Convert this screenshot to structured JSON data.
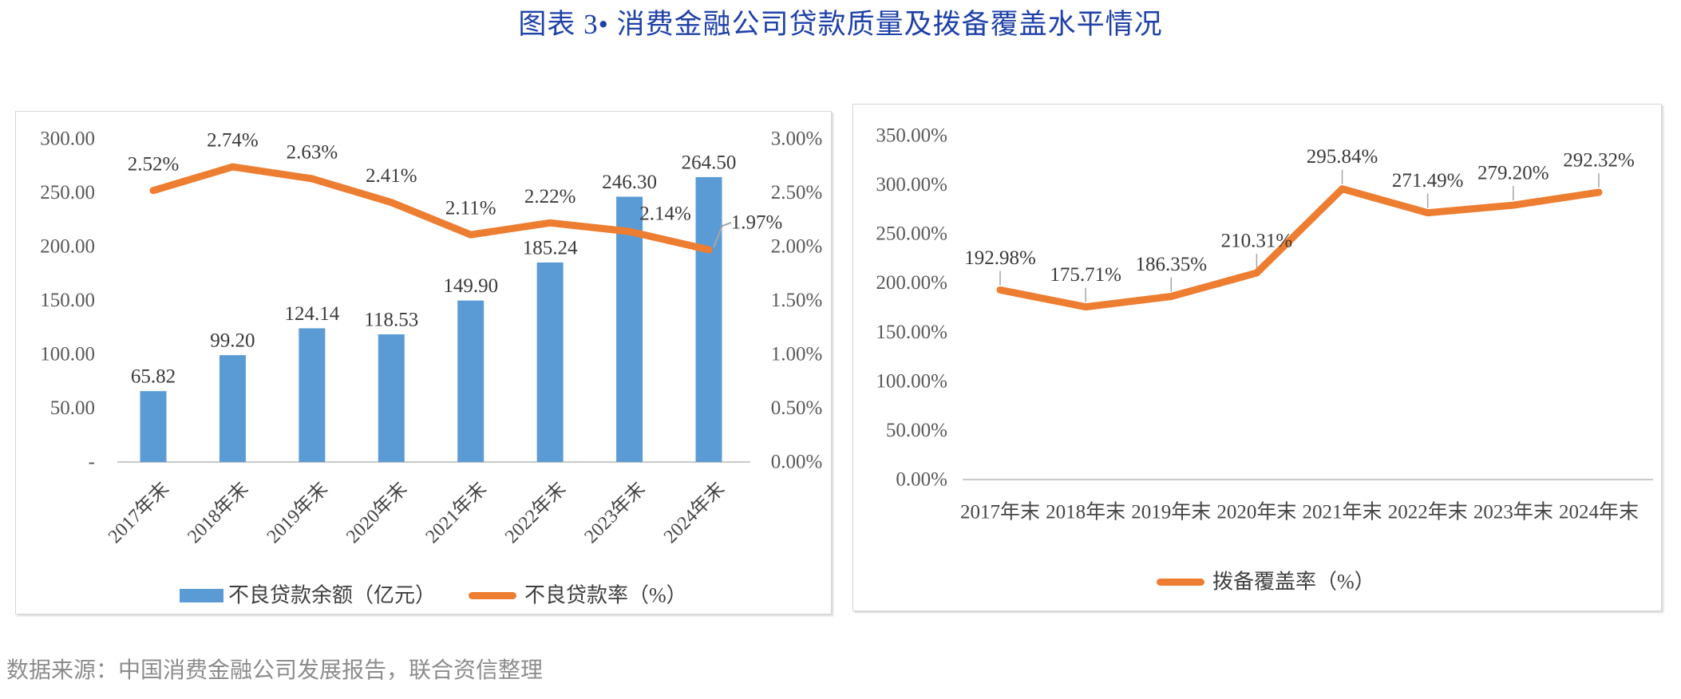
{
  "title": "图表 3• 消费金融公司贷款质量及拨备覆盖水平情况",
  "source_note": "数据来源：中国消费金融公司发展报告，联合资信整理",
  "colors": {
    "title_blue": "#1F41A8",
    "bar_blue": "#5B9BD5",
    "line_orange": "#ED7D31",
    "axis_gray": "#C9C9C9",
    "leader_gray": "#A6A6A6",
    "tick_gray": "#595959",
    "category_gray": "#454545",
    "data_label_dark": "#3A3A3A",
    "legend_text": "#3F3F3F",
    "source_gray": "#8C8C8C"
  },
  "chart_data": [
    {
      "type": "bar",
      "title": "不良贷款余额及不良贷款率",
      "categories": [
        "2017年末",
        "2018年末",
        "2019年末",
        "2020年末",
        "2021年末",
        "2022年末",
        "2023年末",
        "2024年末"
      ],
      "series": [
        {
          "name": "不良贷款余额（亿元）",
          "kind": "bar",
          "axis": "left",
          "values": [
            65.82,
            99.2,
            124.14,
            118.53,
            149.9,
            185.24,
            246.3,
            264.5
          ],
          "labels": [
            "65.82",
            "99.20",
            "124.14",
            "118.53",
            "149.90",
            "185.24",
            "246.30",
            "264.50"
          ]
        },
        {
          "name": "不良贷款率（%）",
          "kind": "line",
          "axis": "right",
          "values": [
            2.52,
            2.74,
            2.63,
            2.41,
            2.11,
            2.22,
            2.14,
            1.97
          ],
          "labels": [
            "2.52%",
            "2.74%",
            "2.63%",
            "2.41%",
            "2.11%",
            "2.22%",
            "2.14%",
            "1.97%"
          ]
        }
      ],
      "left_axis": {
        "ticks": [
          "300.00",
          "250.00",
          "200.00",
          "150.00",
          "100.00",
          "50.00",
          "-"
        ],
        "range": [
          0,
          300
        ]
      },
      "right_axis": {
        "ticks": [
          "3.00%",
          "2.50%",
          "2.00%",
          "1.50%",
          "1.00%",
          "0.50%",
          "0.00%"
        ],
        "range": [
          0,
          3
        ]
      },
      "grid": false,
      "legend_position": "bottom",
      "legend": [
        "不良贷款余额（亿元）",
        "不良贷款率（%）"
      ]
    },
    {
      "type": "line",
      "title": "拨备覆盖率",
      "categories": [
        "2017年末",
        "2018年末",
        "2019年末",
        "2020年末",
        "2021年末",
        "2022年末",
        "2023年末",
        "2024年末"
      ],
      "series": [
        {
          "name": "拨备覆盖率（%）",
          "kind": "line",
          "axis": "left",
          "values": [
            192.98,
            175.71,
            186.35,
            210.31,
            295.84,
            271.49,
            279.2,
            292.32
          ],
          "labels": [
            "192.98%",
            "175.71%",
            "186.35%",
            "210.31%",
            "295.84%",
            "271.49%",
            "279.20%",
            "292.32%"
          ]
        }
      ],
      "left_axis": {
        "ticks": [
          "350.00%",
          "300.00%",
          "250.00%",
          "200.00%",
          "150.00%",
          "100.00%",
          "50.00%",
          "0.00%"
        ],
        "range": [
          0,
          350
        ]
      },
      "grid": false,
      "legend_position": "bottom",
      "legend": [
        "拨备覆盖率（%）"
      ]
    }
  ]
}
